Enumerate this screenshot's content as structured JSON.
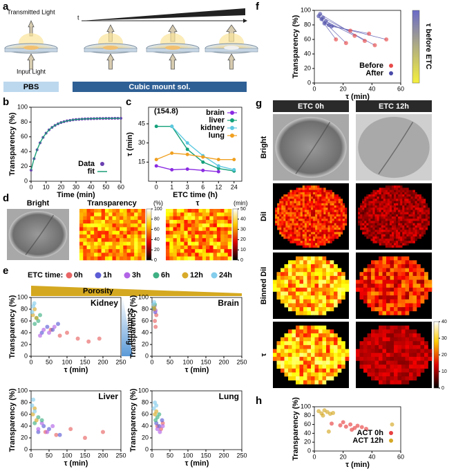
{
  "labels": [
    "a",
    "b",
    "c",
    "d",
    "e",
    "f",
    "g",
    "h"
  ],
  "panel_a": {
    "transmitted": "Transmitted Light",
    "input": "Input Light",
    "t": "t",
    "pbs": "PBS",
    "cubic": "Cubic mount sol."
  },
  "panel_d": {
    "titles": [
      "Bright",
      "Transparency",
      "τ"
    ],
    "units": [
      "(%)",
      "(min)"
    ],
    "cb1_ticks": [
      0,
      20,
      40,
      60,
      80,
      100
    ],
    "cb2_ticks": [
      0,
      10,
      20,
      30,
      40,
      50
    ]
  },
  "panel_e": {
    "legend_title": "ETC time:",
    "porosity": "Porosity",
    "scattering": "Scattering",
    "groups": [
      {
        "name": "0h",
        "color": "#e86464"
      },
      {
        "name": "1h",
        "color": "#5c5cd6"
      },
      {
        "name": "3h",
        "color": "#b264e6"
      },
      {
        "name": "6h",
        "color": "#3fb084"
      },
      {
        "name": "12h",
        "color": "#d8aa2a"
      },
      {
        "name": "24h",
        "color": "#84cdec"
      }
    ]
  },
  "panel_f": {
    "colorbar_label": "τ before ETC"
  },
  "panel_g": {
    "columns": [
      "ETC 0h",
      "ETC 12h"
    ],
    "rows": [
      "Bright",
      "DiI",
      "Binned DiI",
      "τ"
    ],
    "cb_ticks": [
      0,
      10,
      20,
      30,
      40
    ]
  },
  "chart_data": [
    {
      "type": "line",
      "xlabel": "Time (min)",
      "ylabel": "Transparency (%)",
      "x": [
        0,
        2,
        4,
        6,
        8,
        10,
        12,
        14,
        16,
        18,
        20,
        22,
        24,
        26,
        28,
        30,
        32,
        34,
        36,
        38,
        40,
        42,
        44,
        46,
        48,
        50,
        52,
        54,
        56,
        58,
        60
      ],
      "series": [
        {
          "name": "Data",
          "color": "#6a3fb0",
          "style": "markers",
          "values": [
            15,
            30.5,
            42.5,
            51.9,
            59.2,
            64.9,
            69.4,
            72.8,
            75.5,
            77.6,
            79.3,
            80.5,
            81.5,
            82.3,
            82.9,
            83.4,
            83.7,
            84,
            84.2,
            84.4,
            84.5,
            84.6,
            84.7,
            84.8,
            84.8,
            84.9,
            84.9,
            84.9,
            85,
            85,
            85
          ]
        },
        {
          "name": "fit",
          "color": "#1a9e77",
          "style": "line",
          "values": [
            15,
            30.5,
            42.5,
            51.9,
            59.2,
            64.9,
            69.4,
            72.8,
            75.5,
            77.6,
            79.3,
            80.5,
            81.5,
            82.3,
            82.9,
            83.4,
            83.7,
            84,
            84.2,
            84.4,
            84.5,
            84.6,
            84.7,
            84.8,
            84.8,
            84.9,
            84.9,
            84.9,
            85,
            85,
            85
          ]
        }
      ],
      "xlim": [
        0,
        60
      ],
      "ylim": [
        0,
        100
      ],
      "xticks": [
        0,
        10,
        20,
        30,
        40,
        50,
        60
      ],
      "yticks": [
        0,
        20,
        40,
        60,
        80,
        100
      ],
      "legend": "lower right"
    },
    {
      "type": "line",
      "xlabel": "ETC time (h)",
      "ylabel": "τ (min)",
      "annotation": "(154.8)",
      "categories": [
        "0",
        "1",
        "3",
        "6",
        "12",
        "24"
      ],
      "series": [
        {
          "name": "brain",
          "color": "#8a2be2",
          "style": "both",
          "values": [
            12,
            9,
            9.5,
            8.5,
            7.5,
            null
          ]
        },
        {
          "name": "liver",
          "color": "#14a07a",
          "style": "both",
          "values": [
            43,
            43,
            25,
            15,
            10,
            8
          ]
        },
        {
          "name": "kidney",
          "color": "#5cc8e0",
          "style": "both",
          "values": [
            null,
            43,
            30,
            20,
            12,
            9
          ]
        },
        {
          "name": "lung",
          "color": "#f0a020",
          "style": "both",
          "values": [
            17,
            22,
            21,
            19,
            17,
            17
          ]
        }
      ],
      "ylim": [
        0,
        58
      ],
      "yticks": [
        15,
        30,
        45
      ],
      "legend": "upper right"
    },
    {
      "type": "scatter",
      "title": "Kidney",
      "xlabel": "τ (min)",
      "ylabel": "Transparency (%)",
      "xlim": [
        0,
        250
      ],
      "ylim": [
        0,
        100
      ],
      "xticks": [
        0,
        50,
        100,
        150,
        200,
        250
      ],
      "yticks": [
        0,
        20,
        40,
        60,
        80,
        100
      ],
      "series": [
        {
          "color": "#e86464",
          "x": [
            55,
            80,
            100,
            130,
            160,
            190
          ],
          "values": [
            45,
            35,
            40,
            30,
            25,
            30
          ]
        },
        {
          "color": "#5c5cd6",
          "x": [
            30,
            45,
            60,
            75
          ],
          "values": [
            40,
            50,
            45,
            55
          ]
        },
        {
          "color": "#b264e6",
          "x": [
            25,
            35,
            50,
            65
          ],
          "values": [
            35,
            45,
            40,
            50
          ]
        },
        {
          "color": "#3fb084",
          "x": [
            10,
            15,
            20,
            25
          ],
          "values": [
            55,
            65,
            60,
            70
          ]
        },
        {
          "color": "#d8aa2a",
          "x": [
            5,
            10,
            15
          ],
          "values": [
            70,
            80,
            65
          ]
        },
        {
          "color": "#84cdec",
          "x": [
            3,
            6,
            9
          ],
          "values": [
            75,
            85,
            90
          ]
        }
      ]
    },
    {
      "type": "scatter",
      "title": "Brain",
      "xlabel": "τ (min)",
      "ylabel": "Transparency (%)",
      "xlim": [
        0,
        250
      ],
      "ylim": [
        0,
        100
      ],
      "xticks": [
        0,
        50,
        100,
        150,
        200,
        250
      ],
      "yticks": [
        0,
        20,
        40,
        60,
        80,
        100
      ],
      "series": [
        {
          "color": "#e86464",
          "x": [
            8,
            10,
            12
          ],
          "values": [
            60,
            50,
            70
          ]
        },
        {
          "color": "#5c5cd6",
          "x": [
            6,
            9
          ],
          "values": [
            80,
            75
          ]
        },
        {
          "color": "#b264e6",
          "x": [
            7,
            10
          ],
          "values": [
            85,
            78
          ]
        },
        {
          "color": "#3fb084",
          "x": [
            5,
            8
          ],
          "values": [
            82,
            88
          ]
        },
        {
          "color": "#d8aa2a",
          "x": [
            5,
            7
          ],
          "values": [
            85,
            80
          ]
        },
        {
          "color": "#84cdec",
          "x": [
            4,
            6
          ],
          "values": [
            88,
            92
          ]
        }
      ]
    },
    {
      "type": "scatter",
      "title": "Liver",
      "xlabel": "τ (min)",
      "ylabel": "Transparency (%)",
      "xlim": [
        0,
        250
      ],
      "ylim": [
        0,
        100
      ],
      "xticks": [
        0,
        50,
        100,
        150,
        200,
        250
      ],
      "yticks": [
        0,
        20,
        40,
        60,
        80,
        100
      ],
      "series": [
        {
          "color": "#e86464",
          "x": [
            40,
            70,
            110,
            150,
            200
          ],
          "values": [
            30,
            25,
            35,
            20,
            30
          ]
        },
        {
          "color": "#5c5cd6",
          "x": [
            20,
            35,
            50,
            80
          ],
          "values": [
            30,
            40,
            35,
            25
          ]
        },
        {
          "color": "#b264e6",
          "x": [
            20,
            30,
            45,
            60
          ],
          "values": [
            35,
            45,
            30,
            40
          ]
        },
        {
          "color": "#3fb084",
          "x": [
            10,
            20,
            30
          ],
          "values": [
            45,
            55,
            50
          ]
        },
        {
          "color": "#d8aa2a",
          "x": [
            5,
            10,
            15
          ],
          "values": [
            60,
            70,
            50
          ]
        },
        {
          "color": "#84cdec",
          "x": [
            3,
            6,
            10
          ],
          "values": [
            75,
            85,
            65
          ]
        }
      ]
    },
    {
      "type": "scatter",
      "title": "Lung",
      "xlabel": "τ (min)",
      "ylabel": "Transparency (%)",
      "xlim": [
        0,
        250
      ],
      "ylim": [
        0,
        100
      ],
      "xticks": [
        0,
        50,
        100,
        150,
        200,
        250
      ],
      "yticks": [
        0,
        20,
        40,
        60,
        80,
        100
      ],
      "series": [
        {
          "color": "#e86464",
          "x": [
            15,
            25,
            30
          ],
          "values": [
            40,
            35,
            45
          ]
        },
        {
          "color": "#5c5cd6",
          "x": [
            12,
            20,
            28
          ],
          "values": [
            45,
            40,
            50
          ]
        },
        {
          "color": "#b264e6",
          "x": [
            15,
            22,
            30
          ],
          "values": [
            35,
            30,
            40
          ]
        },
        {
          "color": "#3fb084",
          "x": [
            10,
            15,
            20
          ],
          "values": [
            50,
            55,
            60
          ]
        },
        {
          "color": "#d8aa2a",
          "x": [
            8,
            12
          ],
          "values": [
            60,
            65
          ]
        },
        {
          "color": "#84cdec",
          "x": [
            5,
            8,
            12
          ],
          "values": [
            70,
            80,
            75
          ]
        }
      ]
    },
    {
      "type": "arrows",
      "xlabel": "τ (min)",
      "ylabel": "Transparency (%)",
      "xlim": [
        0,
        60
      ],
      "ylim": [
        0,
        100
      ],
      "xticks": [
        0,
        20,
        40,
        60
      ],
      "yticks": [
        0,
        20,
        40,
        60,
        80,
        100
      ],
      "legend": "lower right",
      "series": [
        {
          "name": "Before",
          "color": "#e84a4a",
          "x": [
            15,
            22,
            28,
            35,
            42,
            50,
            25,
            38
          ],
          "values": [
            60,
            55,
            65,
            58,
            52,
            60,
            72,
            68
          ]
        },
        {
          "name": "After",
          "color": "#4a4aa8",
          "x": [
            3,
            5,
            8,
            4,
            6,
            10,
            7,
            12
          ],
          "values": [
            92,
            88,
            85,
            95,
            90,
            80,
            82,
            78
          ]
        }
      ]
    },
    {
      "type": "scatter",
      "xlabel": "τ (min)",
      "ylabel": "Transparency (%)",
      "xlim": [
        0,
        60
      ],
      "ylim": [
        0,
        100
      ],
      "xticks": [
        0,
        20,
        40,
        60
      ],
      "yticks": [
        0,
        20,
        40,
        60,
        80,
        100
      ],
      "legend": "lower right",
      "series": [
        {
          "name": "ACT  0h",
          "color": "#e84040",
          "x": [
            12,
            18,
            22,
            25,
            28,
            30,
            33,
            36,
            20,
            26
          ],
          "values": [
            62,
            58,
            55,
            60,
            52,
            57,
            54,
            50,
            65,
            48
          ]
        },
        {
          "name": "ACT 12h",
          "color": "#d4a824",
          "x": [
            3,
            5,
            7,
            9,
            11,
            13,
            6,
            54,
            10
          ],
          "values": [
            90,
            85,
            92,
            88,
            84,
            86,
            80,
            60,
            44
          ]
        }
      ]
    }
  ]
}
